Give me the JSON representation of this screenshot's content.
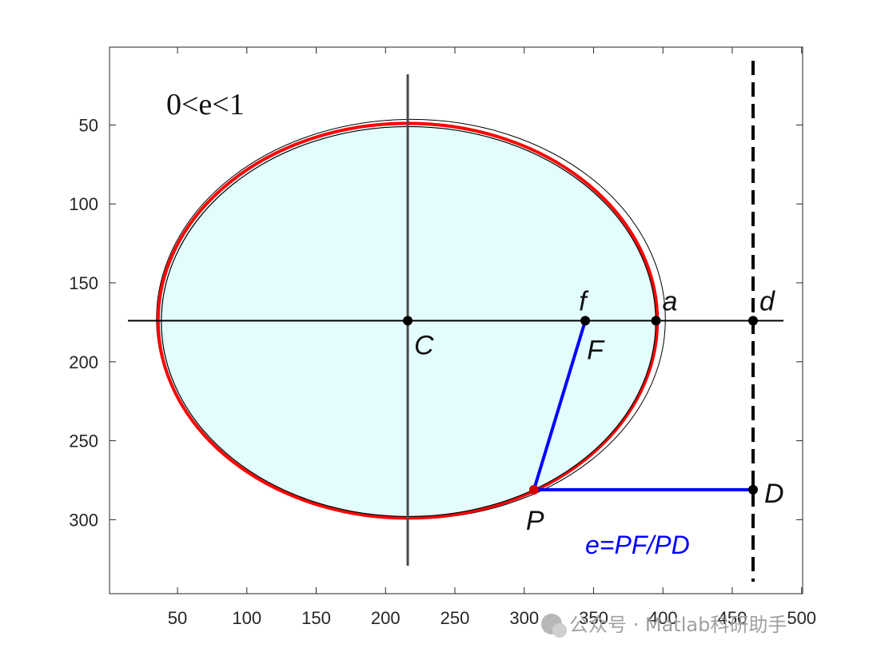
{
  "chart_data": {
    "type": "scatter",
    "title": "",
    "xlabel": "",
    "ylabel": "",
    "xlim": [
      0,
      500
    ],
    "ylim": [
      335,
      0
    ],
    "y_reversed": true,
    "xticks": [
      50,
      100,
      150,
      200,
      250,
      300,
      350,
      400,
      450,
      500
    ],
    "yticks": [
      50,
      100,
      150,
      200,
      250,
      300
    ],
    "grid": false,
    "ellipse": {
      "center": [
        216,
        174
      ],
      "semi_major": 180,
      "semi_minor": 125
    },
    "points": [
      {
        "id": "C",
        "x": 216,
        "y": 174,
        "label": "C"
      },
      {
        "id": "F",
        "x": 344,
        "y": 174,
        "label": "f",
        "label2": "F"
      },
      {
        "id": "A",
        "x": 395,
        "y": 174,
        "label": "a"
      },
      {
        "id": "Dtop",
        "x": 465,
        "y": 174,
        "label": "d"
      },
      {
        "id": "P",
        "x": 307,
        "y": 281,
        "label": "P"
      },
      {
        "id": "D",
        "x": 465,
        "y": 281,
        "label": "D"
      }
    ],
    "directrix_x": 465,
    "eccentricity_label": "0<e<1",
    "formula": "e=PF/PD"
  },
  "colors": {
    "ellipse_fill": "#e3fcfd",
    "ellipse_stroke": "#ff0000",
    "segment": "#0000ff",
    "formula": "#0000ff",
    "axis": "#262626"
  },
  "watermark": "公众号 · Matlab科研助手"
}
